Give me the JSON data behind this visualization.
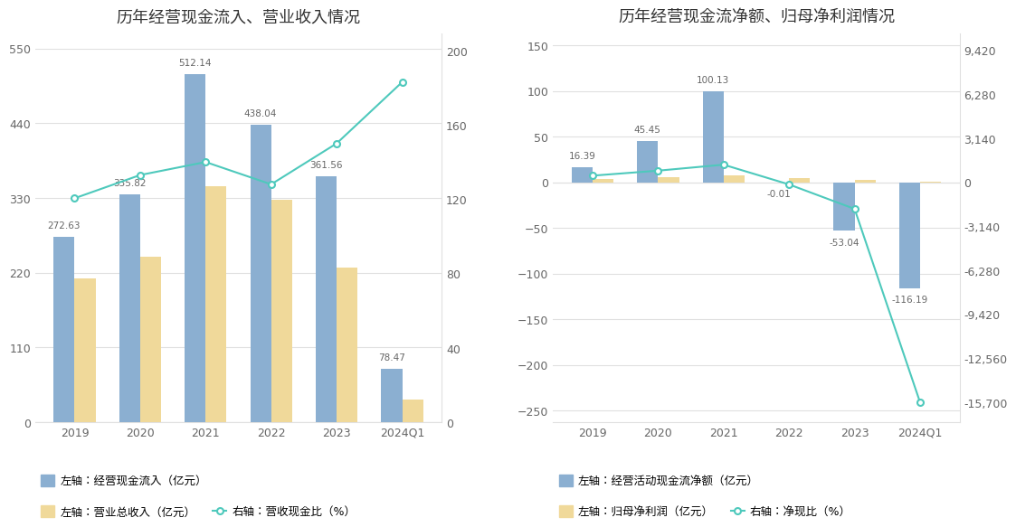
{
  "chart1": {
    "title": "历年经营现金流入、营业收入情况",
    "years": [
      "2019",
      "2020",
      "2021",
      "2022",
      "2023",
      "2024Q1"
    ],
    "blue_bars": [
      272.63,
      335.82,
      512.14,
      438.04,
      361.56,
      78.47
    ],
    "gold_bars": [
      212,
      243,
      348,
      328,
      228,
      33
    ],
    "line_values": [
      120.5,
      133.0,
      140.0,
      128.0,
      150.0,
      183.0
    ],
    "blue_bar_color": "#8BAFD1",
    "gold_bar_color": "#F0D99A",
    "line_color": "#4EC9BC",
    "left_ylim": [
      0,
      572
    ],
    "left_yticks": [
      0,
      110,
      220,
      330,
      440,
      550
    ],
    "right_ylim": [
      0,
      209.09
    ],
    "right_yticks": [
      0,
      40,
      80,
      120,
      160,
      200
    ],
    "bar_labels": [
      "272.63",
      "335.82",
      "512.14",
      "438.04",
      "361.56",
      "78.47"
    ],
    "legend1": "左轴：经营现金流入（亿元）",
    "legend2": "左轴：营业总收入（亿元）",
    "legend3": "右轴：营收现金比（%）"
  },
  "chart2": {
    "title": "历年经营现金流净额、归母净利润情况",
    "years": [
      "2019",
      "2020",
      "2021",
      "2022",
      "2023",
      "2024Q1"
    ],
    "blue_bars": [
      16.39,
      45.45,
      100.13,
      -0.01,
      -53.04,
      -116.19
    ],
    "gold_bars": [
      3.5,
      5.5,
      8.0,
      5.0,
      2.5,
      0.8
    ],
    "line_values": [
      470,
      826,
      1253,
      -157,
      -1900,
      -15700
    ],
    "blue_bar_color": "#8BAFD1",
    "gold_bar_color": "#F0D99A",
    "line_color": "#4EC9BC",
    "left_ylim": [
      -263,
      163
    ],
    "left_yticks": [
      -250,
      -200,
      -150,
      -100,
      -50,
      0,
      50,
      100,
      150
    ],
    "right_ylim": [
      -17117.09,
      10601.27
    ],
    "right_yticks": [
      -15700,
      -12560,
      -9420,
      -6280,
      -3140,
      0,
      3140,
      6280,
      9420
    ],
    "bar_labels": [
      "16.39",
      "45.45",
      "100.13",
      "-0.01",
      "-53.04",
      "-116.19"
    ],
    "legend1": "左轴：经营活动现金流净额（亿元）",
    "legend2": "左轴：归母净利润（亿元）",
    "legend3": "右轴：净现比（%）"
  },
  "background_color": "#FFFFFF",
  "grid_color": "#E0E0E0",
  "text_color": "#666666",
  "title_fontsize": 13,
  "tick_fontsize": 9,
  "label_fontsize": 9,
  "bar_width": 0.32
}
